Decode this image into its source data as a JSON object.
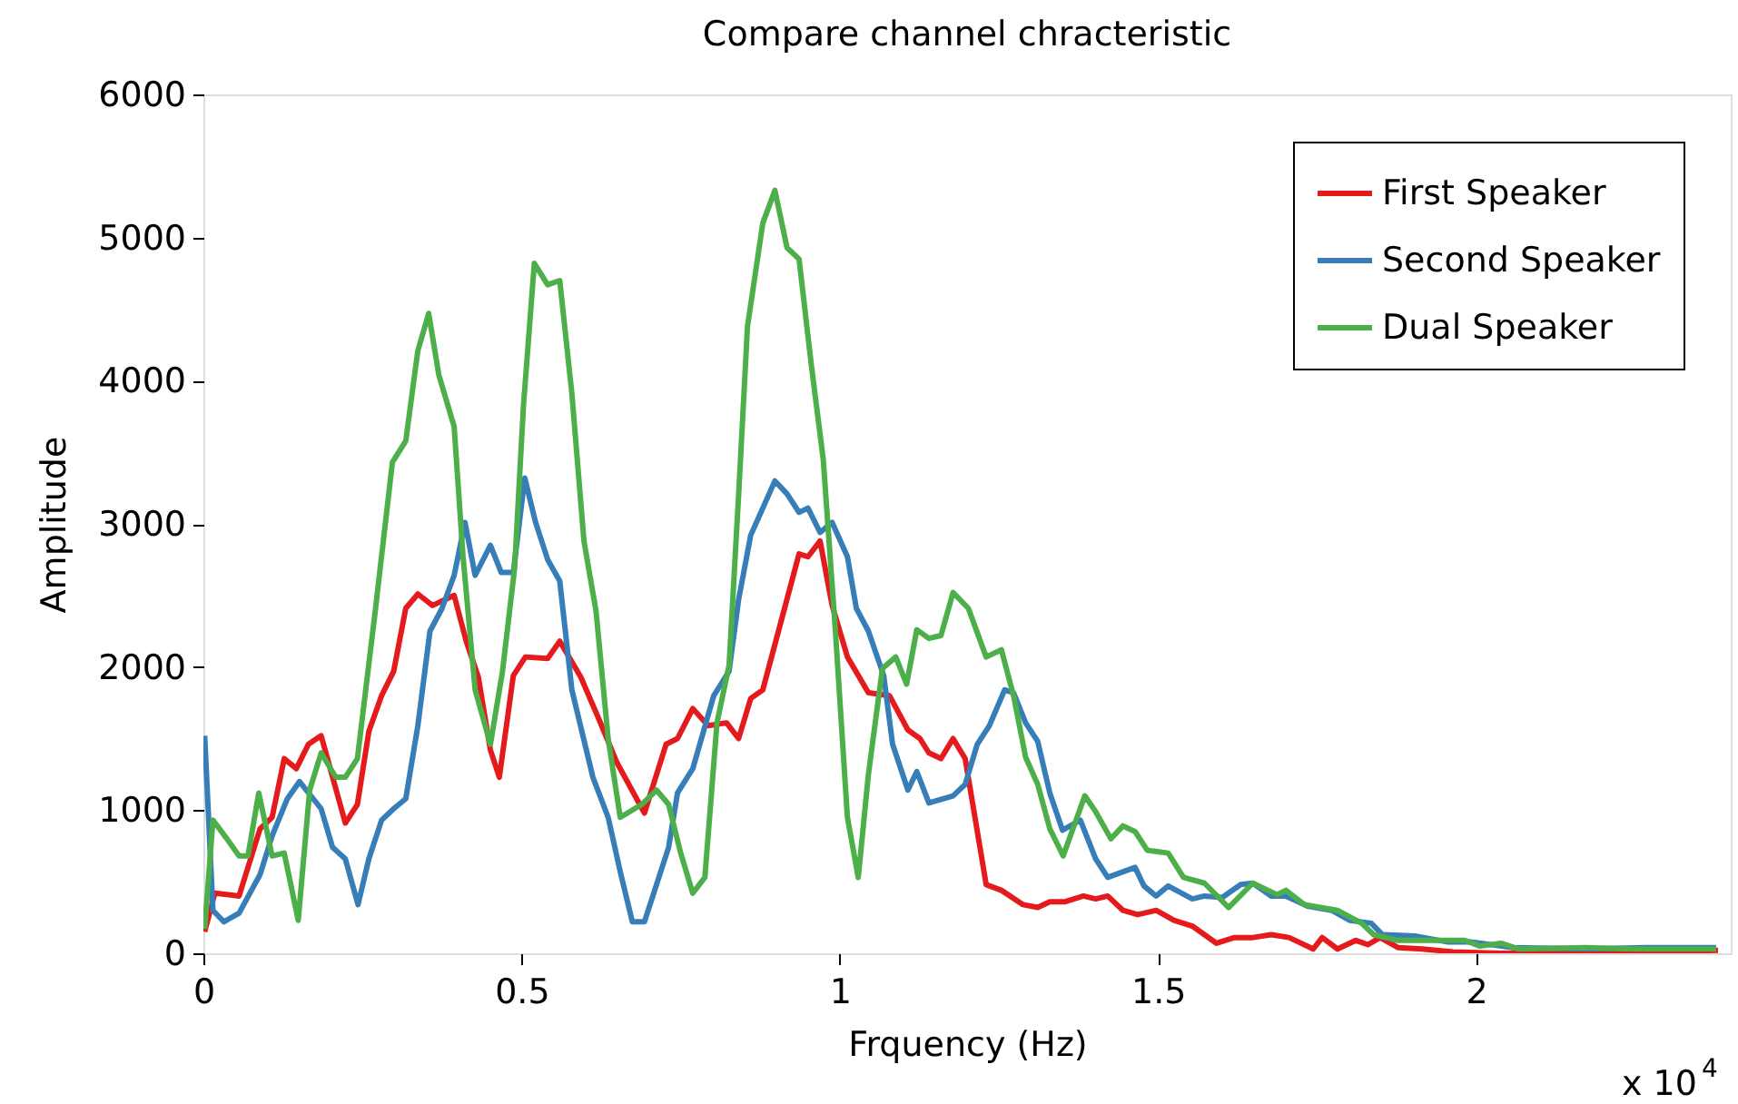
{
  "chart_data": {
    "type": "line",
    "title": "Compare channel chracteristic",
    "xlabel": "Frquency (Hz)",
    "ylabel": "Amplitude",
    "annotations": [
      "x 10$^{4}$"
    ],
    "xlim": [
      0,
      2.4
    ],
    "xticks": [
      0,
      0.5,
      1,
      1.5,
      2
    ],
    "ylim": [
      0,
      6000
    ],
    "yticks": [
      0,
      1000,
      2000,
      3000,
      4000,
      5000,
      6000
    ],
    "grid": false,
    "legend": "top right",
    "series": [
      {
        "name": "First Speaker",
        "color": "#e41a1c",
        "x": [
          0.002,
          0.018,
          0.056,
          0.089,
          0.108,
          0.127,
          0.146,
          0.165,
          0.185,
          0.223,
          0.242,
          0.26,
          0.28,
          0.299,
          0.318,
          0.337,
          0.36,
          0.394,
          0.413,
          0.432,
          0.451,
          0.465,
          0.487,
          0.506,
          0.541,
          0.56,
          0.593,
          0.622,
          0.65,
          0.693,
          0.727,
          0.745,
          0.769,
          0.793,
          0.822,
          0.841,
          0.86,
          0.879,
          0.936,
          0.95,
          0.969,
          0.988,
          1.012,
          1.045,
          1.078,
          1.107,
          1.126,
          1.14,
          1.159,
          1.178,
          1.197,
          1.23,
          1.254,
          1.288,
          1.311,
          1.33,
          1.354,
          1.383,
          1.402,
          1.421,
          1.445,
          1.468,
          1.497,
          1.525,
          1.554,
          1.592,
          1.62,
          1.649,
          1.678,
          1.706,
          1.744,
          1.758,
          1.782,
          1.811,
          1.83,
          1.849,
          1.877,
          1.915,
          1.963,
          2.039,
          2.2,
          2.38
        ],
        "values": [
          150,
          420,
          400,
          870,
          950,
          1360,
          1290,
          1460,
          1520,
          910,
          1040,
          1550,
          1800,
          1970,
          2410,
          2510,
          2430,
          2500,
          2180,
          1930,
          1420,
          1230,
          1940,
          2070,
          2060,
          2180,
          1930,
          1630,
          1330,
          980,
          1460,
          1500,
          1710,
          1590,
          1610,
          1500,
          1780,
          1840,
          2790,
          2770,
          2880,
          2430,
          2070,
          1820,
          1800,
          1560,
          1500,
          1400,
          1360,
          1500,
          1360,
          480,
          440,
          340,
          320,
          360,
          360,
          400,
          380,
          400,
          300,
          270,
          300,
          230,
          190,
          70,
          110,
          110,
          130,
          110,
          30,
          110,
          30,
          90,
          60,
          110,
          40,
          30,
          10,
          0,
          10,
          20
        ]
      },
      {
        "name": "Second Speaker",
        "color": "#377eb8",
        "x": [
          0.002,
          0.015,
          0.032,
          0.056,
          0.089,
          0.108,
          0.132,
          0.151,
          0.185,
          0.203,
          0.223,
          0.243,
          0.26,
          0.28,
          0.299,
          0.318,
          0.337,
          0.356,
          0.375,
          0.394,
          0.411,
          0.427,
          0.451,
          0.468,
          0.487,
          0.505,
          0.522,
          0.541,
          0.56,
          0.579,
          0.612,
          0.636,
          0.655,
          0.674,
          0.693,
          0.712,
          0.731,
          0.745,
          0.769,
          0.802,
          0.826,
          0.841,
          0.86,
          0.898,
          0.917,
          0.936,
          0.95,
          0.969,
          0.988,
          1.012,
          1.026,
          1.045,
          1.069,
          1.083,
          1.107,
          1.121,
          1.14,
          1.178,
          1.197,
          1.216,
          1.235,
          1.259,
          1.273,
          1.292,
          1.311,
          1.33,
          1.35,
          1.378,
          1.402,
          1.421,
          1.464,
          1.478,
          1.497,
          1.516,
          1.554,
          1.573,
          1.601,
          1.63,
          1.649,
          1.678,
          1.701,
          1.735,
          1.773,
          1.801,
          1.835,
          1.853,
          1.906,
          1.954,
          1.991,
          2.058,
          2.172,
          2.267,
          2.377
        ],
        "values": [
          1520,
          300,
          220,
          280,
          550,
          820,
          1080,
          1200,
          1010,
          740,
          660,
          340,
          660,
          930,
          1010,
          1080,
          1590,
          2250,
          2410,
          2640,
          3010,
          2640,
          2850,
          2660,
          2660,
          3320,
          3010,
          2750,
          2600,
          1840,
          1230,
          950,
          570,
          220,
          220,
          480,
          740,
          1120,
          1290,
          1800,
          1970,
          2470,
          2920,
          3300,
          3210,
          3080,
          3110,
          2940,
          3010,
          2770,
          2410,
          2250,
          1940,
          1460,
          1140,
          1270,
          1050,
          1100,
          1180,
          1460,
          1590,
          1840,
          1820,
          1610,
          1480,
          1120,
          860,
          930,
          660,
          530,
          600,
          470,
          400,
          470,
          380,
          400,
          390,
          480,
          490,
          400,
          400,
          330,
          300,
          230,
          210,
          130,
          120,
          80,
          80,
          40,
          30,
          40,
          40
        ]
      },
      {
        "name": "Dual Speaker",
        "color": "#4daf4a",
        "x": [
          0.002,
          0.015,
          0.037,
          0.056,
          0.07,
          0.087,
          0.108,
          0.127,
          0.149,
          0.167,
          0.185,
          0.208,
          0.223,
          0.242,
          0.27,
          0.297,
          0.318,
          0.337,
          0.354,
          0.37,
          0.394,
          0.408,
          0.427,
          0.451,
          0.47,
          0.489,
          0.503,
          0.52,
          0.541,
          0.56,
          0.579,
          0.598,
          0.617,
          0.636,
          0.655,
          0.689,
          0.712,
          0.731,
          0.75,
          0.769,
          0.788,
          0.807,
          0.826,
          0.841,
          0.855,
          0.879,
          0.898,
          0.917,
          0.936,
          0.955,
          0.974,
          0.993,
          1.012,
          1.029,
          1.045,
          1.067,
          1.088,
          1.105,
          1.121,
          1.14,
          1.159,
          1.178,
          1.202,
          1.23,
          1.254,
          1.273,
          1.292,
          1.311,
          1.33,
          1.351,
          1.385,
          1.402,
          1.426,
          1.445,
          1.464,
          1.483,
          1.516,
          1.54,
          1.573,
          1.611,
          1.649,
          1.687,
          1.701,
          1.73,
          1.782,
          1.82,
          1.839,
          1.877,
          1.925,
          1.982,
          2.006,
          2.039,
          2.067,
          2.172,
          2.248,
          2.377
        ],
        "values": [
          170,
          930,
          800,
          680,
          680,
          1120,
          680,
          700,
          230,
          1140,
          1400,
          1230,
          1230,
          1360,
          2390,
          3430,
          3580,
          4210,
          4470,
          4040,
          3680,
          2770,
          1840,
          1460,
          1970,
          2690,
          3830,
          4820,
          4670,
          4700,
          3910,
          2880,
          2390,
          1500,
          950,
          1040,
          1140,
          1040,
          700,
          420,
          530,
          1610,
          2010,
          3200,
          4380,
          5100,
          5330,
          4930,
          4850,
          4120,
          3450,
          2260,
          950,
          530,
          1250,
          1990,
          2070,
          1880,
          2260,
          2200,
          2220,
          2520,
          2410,
          2070,
          2120,
          1800,
          1370,
          1180,
          870,
          680,
          1100,
          990,
          800,
          890,
          850,
          720,
          700,
          530,
          490,
          320,
          490,
          410,
          440,
          340,
          300,
          210,
          130,
          90,
          90,
          90,
          50,
          70,
          30,
          40,
          30,
          30
        ]
      }
    ]
  }
}
